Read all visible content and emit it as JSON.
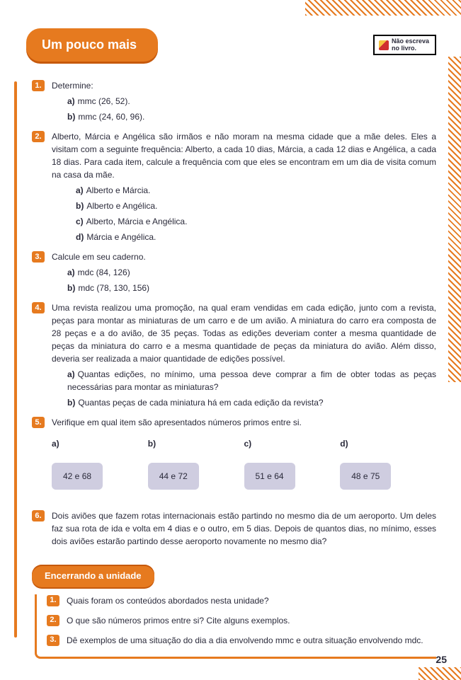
{
  "header": {
    "title": "Um pouco mais",
    "note_line1": "Não escreva",
    "note_line2": "no livro."
  },
  "q1": {
    "num": "1.",
    "prompt": "Determine:",
    "a": "mmc (26, 52).",
    "b": "mmc (24, 60, 96)."
  },
  "q2": {
    "num": "2.",
    "prompt": "Alberto, Márcia e Angélica são irmãos e não moram na mesma cidade que a mãe deles. Eles a visitam com a seguinte frequência: Alberto, a cada 10 dias, Márcia, a cada 12 dias e Angélica, a cada 18 dias. Para cada item, calcule a frequência com que eles se encontram em um dia de visita comum na casa da mãe.",
    "a": "Alberto e Márcia.",
    "b": "Alberto e Angélica.",
    "c": "Alberto, Márcia e Angélica.",
    "d": "Márcia e Angélica."
  },
  "q3": {
    "num": "3.",
    "prompt": "Calcule em seu caderno.",
    "a": "mdc (84, 126)",
    "b": "mdc (78, 130, 156)"
  },
  "q4": {
    "num": "4.",
    "prompt": "Uma revista realizou uma promoção, na qual eram vendidas em cada edição, junto com a revista, peças para montar as miniaturas de um carro e de um avião. A miniatura do carro era composta de 28 peças e a do avião, de 35 peças. Todas as edições deveriam conter a mesma quantidade de peças da miniatura do carro e a mesma quantidade de peças da miniatura do avião. Além disso, deveria ser realizada a maior quantidade de edições possível.",
    "a": "Quantas edições, no mínimo, uma pessoa deve comprar a fim de obter todas as peças necessárias para montar as miniaturas?",
    "b": "Quantas peças de cada miniatura há em cada edição da revista?"
  },
  "q5": {
    "num": "5.",
    "prompt": "Verifique em qual item são apresentados números primos entre si.",
    "opts": {
      "a": {
        "label": "a)",
        "text": "42 e 68"
      },
      "b": {
        "label": "b)",
        "text": "44 e 72"
      },
      "c": {
        "label": "c)",
        "text": "51 e 64"
      },
      "d": {
        "label": "d)",
        "text": "48 e 75"
      }
    }
  },
  "q6": {
    "num": "6.",
    "prompt": "Dois aviões que fazem rotas internacionais estão partindo no mesmo dia de um aeroporto. Um deles faz sua rota de ida e volta em 4 dias e o outro, em 5 dias. Depois de quantos dias, no mínimo, esses dois aviões estarão partindo desse aeroporto novamente no mesmo dia?"
  },
  "closing": {
    "title": "Encerrando a unidade",
    "q1": {
      "num": "1.",
      "text": "Quais foram os conteúdos abordados nesta unidade?"
    },
    "q2": {
      "num": "2.",
      "text": "O que são números primos entre si? Cite alguns exemplos."
    },
    "q3": {
      "num": "3.",
      "text": "Dê exemplos de uma situação do dia a dia envolvendo mmc e outra situação envolvendo mdc."
    }
  },
  "labels": {
    "a": "a)",
    "b": "b)",
    "c": "c)",
    "d": "d)"
  },
  "page_num": "25",
  "colors": {
    "accent": "#e67a1f",
    "pill_bg": "#cfcde0",
    "text": "#2a2a3a"
  }
}
